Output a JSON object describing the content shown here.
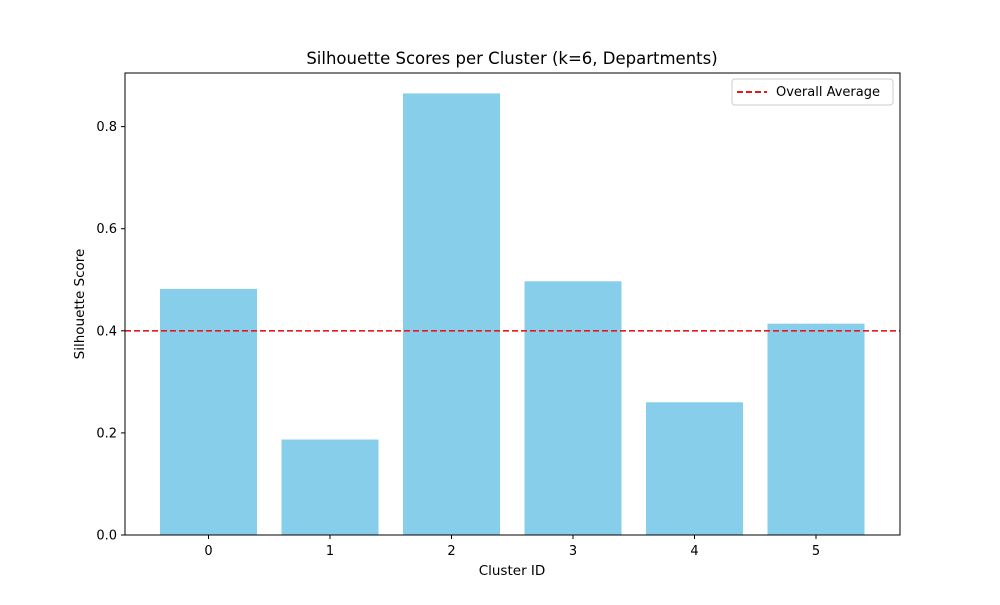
{
  "chart_data": {
    "type": "bar",
    "title": "Silhouette Scores per Cluster (k=6, Departments)",
    "xlabel": "Cluster ID",
    "ylabel": "Silhouette Score",
    "categories": [
      "0",
      "1",
      "2",
      "3",
      "4",
      "5"
    ],
    "values": [
      0.482,
      0.187,
      0.865,
      0.497,
      0.26,
      0.414
    ],
    "ylim": [
      0,
      0.905
    ],
    "yticks": [
      0.0,
      0.2,
      0.4,
      0.6,
      0.8
    ],
    "ytick_labels": [
      "0.0",
      "0.2",
      "0.4",
      "0.6",
      "0.8"
    ],
    "reference_line": {
      "label": "Overall Average",
      "value": 0.4,
      "style": "dashed"
    },
    "bar_color": "#87ceeb",
    "reference_color": "#e41a1c",
    "legend_position": "top-right",
    "grid": false
  }
}
